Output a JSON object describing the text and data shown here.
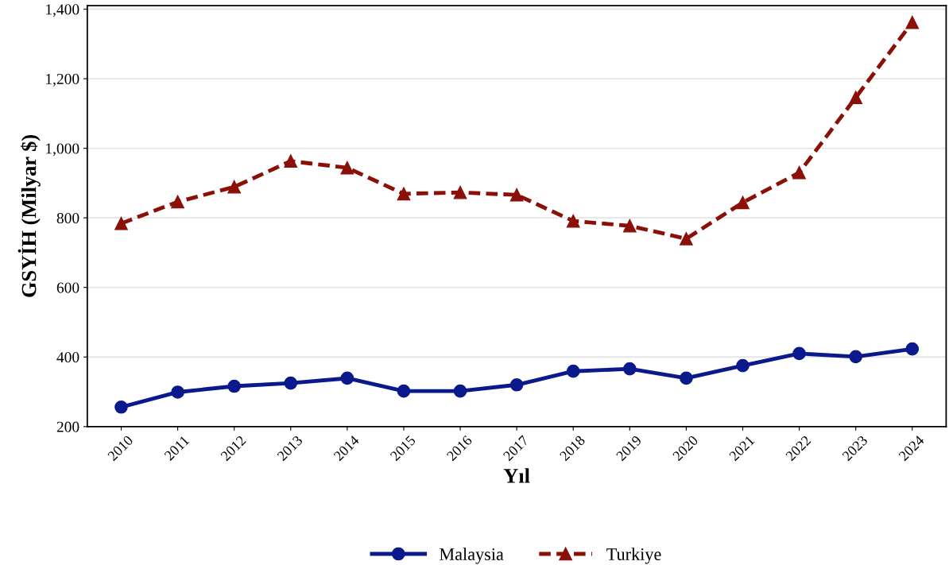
{
  "chart_data": {
    "type": "line",
    "xlabel": "Yıl",
    "ylabel": "GSYİH (Milyar $)",
    "categories": [
      "2010",
      "2011",
      "2012",
      "2013",
      "2014",
      "2015",
      "2016",
      "2017",
      "2018",
      "2019",
      "2020",
      "2021",
      "2022",
      "2023",
      "2024"
    ],
    "series": [
      {
        "name": "Malaysia",
        "color": "#0a1a8c",
        "marker": "circle",
        "line_style": "solid",
        "values": [
          256,
          299,
          316,
          325,
          339,
          302,
          302,
          320,
          359,
          366,
          339,
          375,
          410,
          401,
          423
        ]
      },
      {
        "name": "Turkiye",
        "color": "#8b1008",
        "marker": "triangle",
        "line_style": "dashed",
        "values": [
          784,
          846,
          889,
          963,
          944,
          869,
          873,
          866,
          791,
          777,
          740,
          844,
          930,
          1146,
          1362
        ]
      }
    ],
    "ylim": [
      200,
      1410
    ],
    "yticks": [
      {
        "value": 200,
        "label": "200"
      },
      {
        "value": 400,
        "label": "400"
      },
      {
        "value": 600,
        "label": "600"
      },
      {
        "value": 800,
        "label": "800"
      },
      {
        "value": 1000,
        "label": "1,000"
      },
      {
        "value": 1200,
        "label": "1,200"
      },
      {
        "value": 1400,
        "label": "1,400"
      }
    ],
    "grid": "y",
    "legend": "bottom"
  }
}
